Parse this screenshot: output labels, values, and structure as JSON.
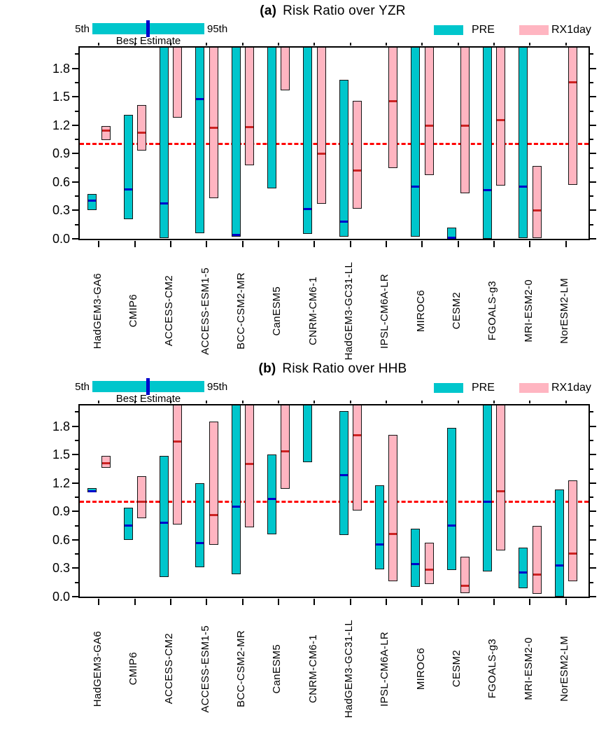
{
  "chart_data": [
    {
      "type": "bar",
      "variant": "percentile-range-bars",
      "title_prefix": "(a)",
      "title": "Risk Ratio over YZR",
      "key": {
        "left": "5th",
        "right": "95th",
        "center": "Best Estimate"
      },
      "ylim": [
        0.0,
        2.0
      ],
      "ytick_labels": [
        "0.0",
        "0.3",
        "0.6",
        "0.9",
        "1.2",
        "1.5",
        "1.8"
      ],
      "reference_line": 1.0,
      "reference_color": "#ff0000",
      "legend_position": "top-right",
      "categories": [
        "HadGEM3-GA6",
        "CMIP6",
        "ACCESS-CM2",
        "ACCESS-ESM1-5",
        "BCC-CSM2-MR",
        "CanESM5",
        "CNRM-CM6-1",
        "HadGEM3-GC31-LL",
        "IPSL-CM6A-LR",
        "MIROC6",
        "CESM2",
        "FGOALS-g3",
        "MRI-ESM2-0",
        "NorESM2-LM"
      ],
      "series": [
        {
          "name": "PRE",
          "color": "#00C6CC",
          "best_color": "#0000CD",
          "values": [
            {
              "low": 0.3,
              "high": 0.47,
              "best": 0.41
            },
            {
              "low": 0.21,
              "high": 1.31,
              "best": 0.53
            },
            {
              "low": 0.01,
              "high": 2.1,
              "best": 0.38
            },
            {
              "low": 0.06,
              "high": 2.1,
              "best": 1.48
            },
            {
              "low": 0.02,
              "high": 2.1,
              "best": 0.05
            },
            {
              "low": 0.53,
              "high": 2.1,
              "best": null
            },
            {
              "low": 0.05,
              "high": 2.1,
              "best": 0.32
            },
            {
              "low": 0.02,
              "high": 1.68,
              "best": 0.19
            },
            null,
            {
              "low": 0.02,
              "high": 2.1,
              "best": 0.56
            },
            {
              "low": 0.0,
              "high": 0.12,
              "best": 0.02
            },
            {
              "low": 0.0,
              "high": 2.1,
              "best": 0.52
            },
            {
              "low": 0.01,
              "high": 2.1,
              "best": 0.56
            },
            null
          ]
        },
        {
          "name": "RX1day",
          "color": "#FFB5C1",
          "best_color": "#CC2222",
          "values": [
            {
              "low": 1.04,
              "high": 1.19,
              "best": 1.15
            },
            {
              "low": 0.93,
              "high": 1.41,
              "best": 1.13
            },
            {
              "low": 1.28,
              "high": 2.1,
              "best": null
            },
            {
              "low": 0.43,
              "high": 2.1,
              "best": 1.18
            },
            {
              "low": 0.78,
              "high": 2.1,
              "best": 1.19
            },
            {
              "low": 1.57,
              "high": 2.1,
              "best": null
            },
            {
              "low": 0.37,
              "high": 2.1,
              "best": 0.91
            },
            {
              "low": 0.32,
              "high": 1.46,
              "best": 0.73
            },
            {
              "low": 0.75,
              "high": 2.1,
              "best": 1.46
            },
            {
              "low": 0.67,
              "high": 2.1,
              "best": 1.2
            },
            {
              "low": 0.48,
              "high": 2.1,
              "best": 1.2
            },
            {
              "low": 0.56,
              "high": 2.1,
              "best": 1.26
            },
            {
              "low": 0.01,
              "high": 0.77,
              "best": 0.31
            },
            {
              "low": 0.57,
              "high": 2.1,
              "best": 1.66
            }
          ]
        }
      ]
    },
    {
      "type": "bar",
      "variant": "percentile-range-bars",
      "title_prefix": "(b)",
      "title": "Risk Ratio over HHB",
      "key": {
        "left": "5th",
        "right": "95th",
        "center": "Best Estimate"
      },
      "ylim": [
        0.0,
        2.0
      ],
      "ytick_labels": [
        "0.0",
        "0.3",
        "0.6",
        "0.9",
        "1.2",
        "1.5",
        "1.8"
      ],
      "reference_line": 1.0,
      "reference_color": "#ff0000",
      "legend_position": "top-right",
      "categories": [
        "HadGEM3-GA6",
        "CMIP6",
        "ACCESS-CM2",
        "ACCESS-ESM1-5",
        "BCC-CSM2-MR",
        "CanESM5",
        "CNRM-CM6-1",
        "HadGEM3-GC31-LL",
        "IPSL-CM6A-LR",
        "MIROC6",
        "CESM2",
        "FGOALS-g3",
        "MRI-ESM2-0",
        "NorESM2-LM"
      ],
      "series": [
        {
          "name": "PRE",
          "color": "#00C6CC",
          "best_color": "#0000CD",
          "values": [
            {
              "low": 1.1,
              "high": 1.15,
              "best": 1.12
            },
            {
              "low": 0.6,
              "high": 0.94,
              "best": 0.76
            },
            {
              "low": 0.21,
              "high": 1.49,
              "best": 0.79
            },
            {
              "low": 0.31,
              "high": 1.2,
              "best": 0.57
            },
            {
              "low": 0.24,
              "high": 2.1,
              "best": 0.96
            },
            {
              "low": 0.66,
              "high": 1.5,
              "best": 1.04
            },
            {
              "low": 1.42,
              "high": 2.1,
              "best": null
            },
            {
              "low": 0.65,
              "high": 1.96,
              "best": 1.29
            },
            {
              "low": 0.29,
              "high": 1.18,
              "best": 0.56
            },
            {
              "low": 0.1,
              "high": 0.72,
              "best": 0.35
            },
            {
              "low": 0.28,
              "high": 1.78,
              "best": 0.76
            },
            {
              "low": 0.27,
              "high": 2.1,
              "best": 1.01
            },
            {
              "low": 0.09,
              "high": 0.52,
              "best": 0.26
            },
            {
              "low": 0.0,
              "high": 1.13,
              "best": 0.34
            }
          ]
        },
        {
          "name": "RX1day",
          "color": "#FFB5C1",
          "best_color": "#CC2222",
          "values": [
            {
              "low": 1.36,
              "high": 1.49,
              "best": 1.42
            },
            {
              "low": 0.83,
              "high": 1.27,
              "best": 1.01
            },
            {
              "low": 0.76,
              "high": 2.1,
              "best": 1.65
            },
            {
              "low": 0.55,
              "high": 1.85,
              "best": 0.87
            },
            {
              "low": 0.73,
              "high": 2.1,
              "best": 1.41
            },
            {
              "low": 1.14,
              "high": 2.1,
              "best": 1.54
            },
            null,
            {
              "low": 0.91,
              "high": 2.1,
              "best": 1.71
            },
            {
              "low": 0.16,
              "high": 1.71,
              "best": 0.67
            },
            {
              "low": 0.13,
              "high": 0.57,
              "best": 0.29
            },
            {
              "low": 0.04,
              "high": 0.42,
              "best": 0.12
            },
            {
              "low": 0.49,
              "high": 2.1,
              "best": 1.12
            },
            {
              "low": 0.03,
              "high": 0.75,
              "best": 0.24
            },
            {
              "low": 0.16,
              "high": 1.23,
              "best": 0.46
            }
          ]
        }
      ]
    }
  ]
}
